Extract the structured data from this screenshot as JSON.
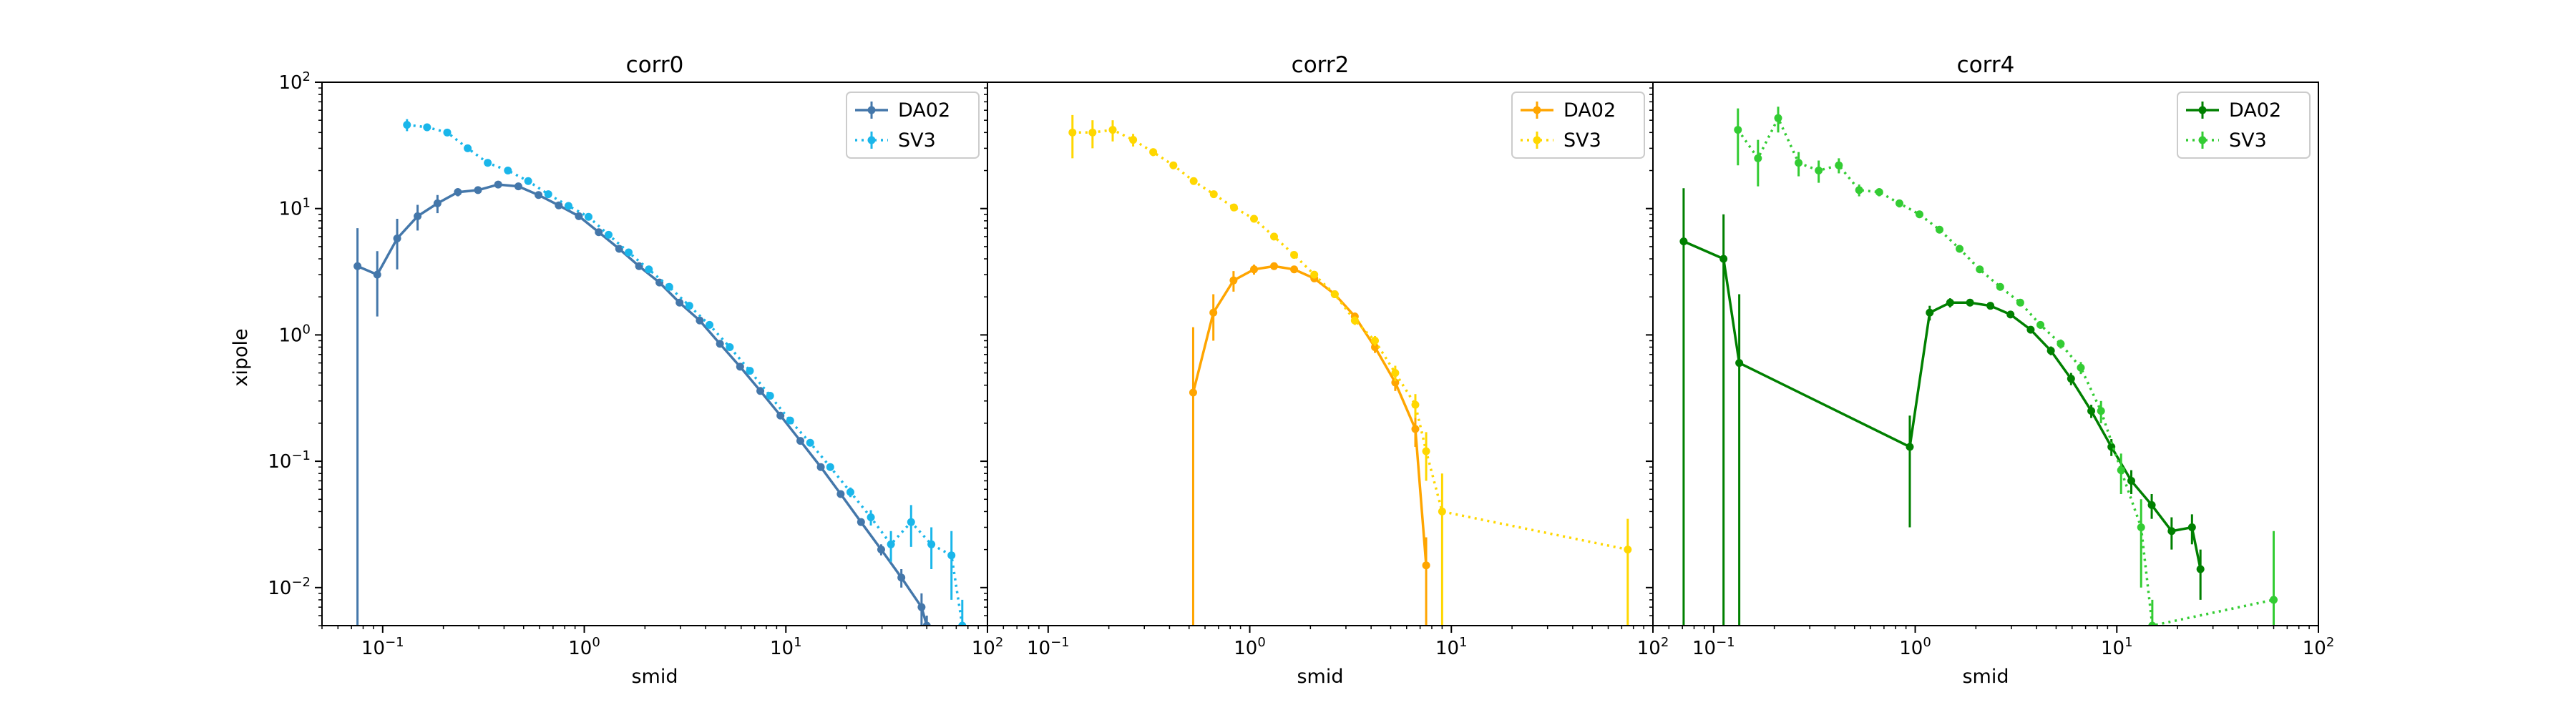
{
  "figure": {
    "xlabel": "smid",
    "ylabel": "xipole"
  },
  "colors": {
    "da02": [
      "#4477aa",
      "#ffa500",
      "#008000"
    ],
    "sv3": [
      "#1ab6ea",
      "#ffd700",
      "#33cc33"
    ]
  },
  "chart_data": [
    {
      "type": "line",
      "title": "corr0",
      "xlabel": "smid",
      "ylabel": "xipole",
      "xscale": "log",
      "yscale": "log",
      "xlim": [
        0.05,
        100
      ],
      "ylim": [
        0.005,
        100
      ],
      "legend": "top-right",
      "grid": false,
      "series": [
        {
          "name": "DA02",
          "style": "solid",
          "x": [
            0.075,
            0.094,
            0.118,
            0.149,
            0.187,
            0.236,
            0.297,
            0.374,
            0.471,
            0.593,
            0.747,
            0.94,
            1.18,
            1.49,
            1.87,
            2.36,
            2.97,
            3.74,
            4.71,
            5.93,
            7.47,
            9.4,
            11.8,
            14.9,
            18.7,
            23.6,
            29.7,
            37.4,
            47.1,
            50
          ],
          "y": [
            3.5,
            3.0,
            5.8,
            8.7,
            11.0,
            13.5,
            14.0,
            15.5,
            15.0,
            12.8,
            10.6,
            8.7,
            6.5,
            4.8,
            3.5,
            2.6,
            1.8,
            1.3,
            0.85,
            0.56,
            0.36,
            0.23,
            0.145,
            0.09,
            0.055,
            0.033,
            0.02,
            0.012,
            0.007,
            0.005
          ],
          "yerr": [
            3.5,
            1.6,
            2.5,
            2.0,
            1.8,
            1.0,
            0.8,
            0.7,
            0.6,
            0.5,
            0.3,
            0.2,
            0.1,
            0.1,
            0.06,
            0.05,
            0.03,
            0.02,
            0.015,
            0.01,
            0.008,
            0.005,
            0.004,
            0.003,
            0.002,
            0.002,
            0.002,
            0.002,
            0.002,
            0.001
          ]
        },
        {
          "name": "SV3",
          "style": "dotted",
          "x": [
            0.132,
            0.166,
            0.209,
            0.264,
            0.332,
            0.418,
            0.527,
            0.663,
            0.835,
            1.05,
            1.32,
            1.66,
            2.09,
            2.64,
            3.32,
            4.18,
            5.27,
            6.63,
            8.35,
            10.5,
            13.2,
            16.6,
            20.9,
            26.4,
            33.2,
            41.8,
            52.7,
            66.3,
            75
          ],
          "y": [
            46,
            44,
            40,
            30,
            23,
            20,
            16.5,
            13.0,
            10.5,
            8.6,
            6.2,
            4.5,
            3.3,
            2.4,
            1.7,
            1.2,
            0.8,
            0.52,
            0.33,
            0.21,
            0.14,
            0.09,
            0.057,
            0.036,
            0.022,
            0.033,
            0.022,
            0.018,
            0.005
          ],
          "yerr": [
            5,
            3,
            2,
            1.5,
            1,
            0.8,
            0.6,
            0.5,
            0.4,
            0.3,
            0.2,
            0.15,
            0.1,
            0.08,
            0.05,
            0.04,
            0.03,
            0.02,
            0.015,
            0.01,
            0.008,
            0.006,
            0.005,
            0.005,
            0.006,
            0.012,
            0.008,
            0.01,
            0.003
          ]
        }
      ]
    },
    {
      "type": "line",
      "title": "corr2",
      "xlabel": "smid",
      "ylabel": "",
      "xscale": "log",
      "yscale": "log",
      "xlim": [
        0.05,
        100
      ],
      "ylim": [
        0.005,
        100
      ],
      "legend": "top-right",
      "grid": false,
      "series": [
        {
          "name": "DA02",
          "style": "solid",
          "x": [
            0.524,
            0.66,
            0.831,
            1.05,
            1.32,
            1.66,
            2.09,
            2.64,
            3.32,
            4.18,
            5.27,
            6.63,
            7.5
          ],
          "y": [
            0.35,
            1.5,
            2.7,
            3.3,
            3.5,
            3.3,
            2.8,
            2.1,
            1.4,
            0.8,
            0.42,
            0.18,
            0.015
          ],
          "yerr": [
            0.8,
            0.6,
            0.5,
            0.3,
            0.2,
            0.2,
            0.15,
            0.12,
            0.1,
            0.08,
            0.06,
            0.05,
            0.01
          ]
        },
        {
          "name": "SV3",
          "style": "dotted",
          "x": [
            0.132,
            0.166,
            0.209,
            0.264,
            0.332,
            0.418,
            0.527,
            0.663,
            0.835,
            1.05,
            1.32,
            1.66,
            2.09,
            2.64,
            3.32,
            4.18,
            5.27,
            6.63,
            7.5,
            9.0,
            75
          ],
          "y": [
            40,
            40,
            42,
            35,
            28,
            22,
            16.5,
            13.0,
            10.2,
            8.3,
            6.0,
            4.3,
            3.0,
            2.1,
            1.3,
            0.9,
            0.5,
            0.28,
            0.12,
            0.04,
            0.02
          ],
          "yerr": [
            15,
            10,
            8,
            4,
            2,
            1.5,
            1,
            0.7,
            0.5,
            0.4,
            0.3,
            0.2,
            0.15,
            0.12,
            0.1,
            0.08,
            0.07,
            0.06,
            0.05,
            0.04,
            0.015
          ]
        }
      ]
    },
    {
      "type": "line",
      "title": "corr4",
      "xlabel": "smid",
      "ylabel": "",
      "xscale": "log",
      "yscale": "log",
      "xlim": [
        0.05,
        100
      ],
      "ylim": [
        0.005,
        100
      ],
      "legend": "top-right",
      "grid": false,
      "series": [
        {
          "name": "DA02",
          "style": "solid",
          "x": [
            0.071,
            0.112,
            0.134,
            0.94,
            1.18,
            1.49,
            1.87,
            2.36,
            2.97,
            3.74,
            4.71,
            5.93,
            7.47,
            9.4,
            11.8,
            14.9,
            18.7,
            23.6,
            26
          ],
          "y": [
            5.5,
            4.0,
            0.6,
            0.13,
            1.5,
            1.8,
            1.8,
            1.7,
            1.45,
            1.1,
            0.75,
            0.45,
            0.25,
            0.13,
            0.07,
            0.045,
            0.028,
            0.03,
            0.014
          ],
          "yerr": [
            9,
            5,
            1.5,
            0.1,
            0.2,
            0.15,
            0.12,
            0.1,
            0.09,
            0.07,
            0.06,
            0.05,
            0.03,
            0.02,
            0.015,
            0.01,
            0.008,
            0.008,
            0.006
          ]
        },
        {
          "name": "SV3",
          "style": "dotted",
          "x": [
            0.132,
            0.166,
            0.209,
            0.264,
            0.332,
            0.418,
            0.527,
            0.663,
            0.835,
            1.05,
            1.32,
            1.66,
            2.09,
            2.64,
            3.32,
            4.18,
            5.27,
            6.63,
            8.35,
            10.5,
            13.2,
            15,
            60
          ],
          "y": [
            42,
            25,
            52,
            23,
            20,
            22,
            14,
            13.5,
            11,
            9,
            6.8,
            4.8,
            3.3,
            2.4,
            1.8,
            1.2,
            0.85,
            0.55,
            0.25,
            0.085,
            0.03,
            0.005,
            0.008
          ],
          "yerr": [
            20,
            10,
            12,
            5,
            4,
            3,
            1.5,
            1,
            0.8,
            0.6,
            0.4,
            0.3,
            0.2,
            0.15,
            0.1,
            0.08,
            0.07,
            0.06,
            0.05,
            0.03,
            0.02,
            0.003,
            0.02
          ]
        }
      ]
    }
  ]
}
